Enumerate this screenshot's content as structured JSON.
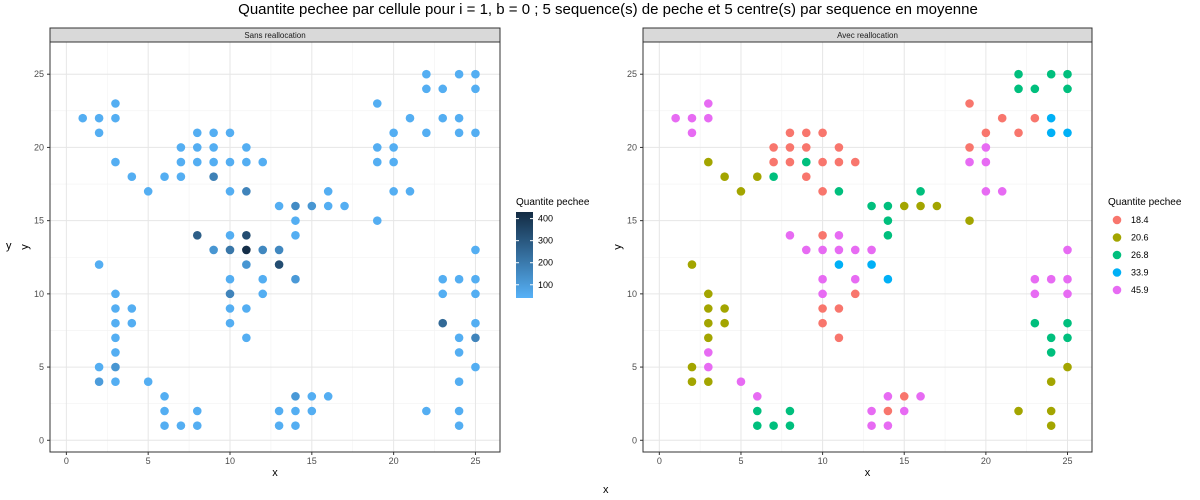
{
  "title": "Quantite pechee par cellule pour i = 1, b = 0 ; 5 sequence(s) de peche et 5 centre(s) par sequence en moyenne",
  "outer_ylabel": "y",
  "outer_xlabel": "x",
  "chart_data": [
    {
      "type": "scatter",
      "facet": "Sans reallocation",
      "xlabel": "x",
      "ylabel": "y",
      "xlim": [
        -1,
        26.5
      ],
      "ylim": [
        -0.8,
        27.2
      ],
      "xticks": [
        0,
        5,
        10,
        15,
        20,
        25
      ],
      "yticks": [
        0,
        5,
        10,
        15,
        20,
        25
      ],
      "grid": true,
      "color_scale": "continuous",
      "legend": {
        "title": "Quantite pechee",
        "breaks": [
          100,
          200,
          300,
          400
        ],
        "range": [
          40,
          430
        ],
        "low_color": "#56B1F7",
        "high_color": "#132B43",
        "position": "right"
      },
      "default_value": 50,
      "highlight_values": [
        {
          "x": 9,
          "y": 18,
          "value": 180
        },
        {
          "x": 11,
          "y": 17,
          "value": 170
        },
        {
          "x": 14,
          "y": 16,
          "value": 150
        },
        {
          "x": 15,
          "y": 16,
          "value": 120
        },
        {
          "x": 8,
          "y": 14,
          "value": 280
        },
        {
          "x": 11,
          "y": 14,
          "value": 330
        },
        {
          "x": 9,
          "y": 13,
          "value": 120
        },
        {
          "x": 10,
          "y": 13,
          "value": 210
        },
        {
          "x": 11,
          "y": 13,
          "value": 420
        },
        {
          "x": 12,
          "y": 13,
          "value": 160
        },
        {
          "x": 13,
          "y": 13,
          "value": 160
        },
        {
          "x": 13,
          "y": 12,
          "value": 330
        },
        {
          "x": 11,
          "y": 12,
          "value": 120
        },
        {
          "x": 14,
          "y": 11,
          "value": 110
        },
        {
          "x": 10,
          "y": 10,
          "value": 170
        },
        {
          "x": 23,
          "y": 8,
          "value": 250
        },
        {
          "x": 25,
          "y": 7,
          "value": 170
        },
        {
          "x": 3,
          "y": 5,
          "value": 120
        },
        {
          "x": 2,
          "y": 4,
          "value": 100
        },
        {
          "x": 14,
          "y": 3,
          "value": 110
        }
      ]
    },
    {
      "type": "scatter",
      "facet": "Avec reallocation",
      "xlabel": "x",
      "ylabel": "y",
      "xlim": [
        -1,
        26.5
      ],
      "ylim": [
        -0.8,
        27.2
      ],
      "xticks": [
        0,
        5,
        10,
        15,
        20,
        25
      ],
      "yticks": [
        0,
        5,
        10,
        15,
        20,
        25
      ],
      "grid": true,
      "color_scale": "discrete",
      "legend": {
        "title": "Quantite pechee",
        "position": "right",
        "entries": [
          {
            "label": "18.4",
            "color": "#F8766D"
          },
          {
            "label": "20.6",
            "color": "#A3A500"
          },
          {
            "label": "26.8",
            "color": "#00BF7D"
          },
          {
            "label": "33.9",
            "color": "#00B0F6"
          },
          {
            "label": "45.9",
            "color": "#E76BF3"
          }
        ]
      }
    }
  ],
  "points": [
    {
      "x": 1,
      "y": 22,
      "g": "45.9"
    },
    {
      "x": 2,
      "y": 22,
      "g": "45.9"
    },
    {
      "x": 3,
      "y": 22,
      "g": "45.9"
    },
    {
      "x": 2,
      "y": 21,
      "g": "45.9"
    },
    {
      "x": 3,
      "y": 23,
      "g": "45.9"
    },
    {
      "x": 3,
      "y": 19,
      "g": "20.6"
    },
    {
      "x": 4,
      "y": 18,
      "g": "20.6"
    },
    {
      "x": 5,
      "y": 17,
      "g": "20.6"
    },
    {
      "x": 6,
      "y": 18,
      "g": "20.6"
    },
    {
      "x": 7,
      "y": 18,
      "g": "26.8"
    },
    {
      "x": 7,
      "y": 19,
      "g": "18.4"
    },
    {
      "x": 7,
      "y": 20,
      "g": "18.4"
    },
    {
      "x": 8,
      "y": 21,
      "g": "18.4"
    },
    {
      "x": 8,
      "y": 20,
      "g": "18.4"
    },
    {
      "x": 8,
      "y": 19,
      "g": "18.4"
    },
    {
      "x": 9,
      "y": 21,
      "g": "18.4"
    },
    {
      "x": 9,
      "y": 20,
      "g": "18.4"
    },
    {
      "x": 9,
      "y": 19,
      "g": "26.8"
    },
    {
      "x": 9,
      "y": 18,
      "g": "18.4"
    },
    {
      "x": 10,
      "y": 21,
      "g": "18.4"
    },
    {
      "x": 10,
      "y": 19,
      "g": "18.4"
    },
    {
      "x": 10,
      "y": 17,
      "g": "18.4"
    },
    {
      "x": 11,
      "y": 20,
      "g": "18.4"
    },
    {
      "x": 11,
      "y": 19,
      "g": "18.4"
    },
    {
      "x": 11,
      "y": 17,
      "g": "26.8"
    },
    {
      "x": 12,
      "y": 19,
      "g": "18.4"
    },
    {
      "x": 13,
      "y": 16,
      "g": "26.8"
    },
    {
      "x": 14,
      "y": 16,
      "g": "26.8"
    },
    {
      "x": 14,
      "y": 15,
      "g": "26.8"
    },
    {
      "x": 14,
      "y": 14,
      "g": "26.8"
    },
    {
      "x": 15,
      "y": 16,
      "g": "20.6"
    },
    {
      "x": 16,
      "y": 16,
      "g": "20.6"
    },
    {
      "x": 16,
      "y": 17,
      "g": "26.8"
    },
    {
      "x": 17,
      "y": 16,
      "g": "20.6"
    },
    {
      "x": 19,
      "y": 15,
      "g": "20.6"
    },
    {
      "x": 19,
      "y": 19,
      "g": "45.9"
    },
    {
      "x": 19,
      "y": 20,
      "g": "18.4"
    },
    {
      "x": 19,
      "y": 23,
      "g": "18.4"
    },
    {
      "x": 20,
      "y": 21,
      "g": "18.4"
    },
    {
      "x": 20,
      "y": 20,
      "g": "45.9"
    },
    {
      "x": 20,
      "y": 19,
      "g": "45.9"
    },
    {
      "x": 20,
      "y": 17,
      "g": "45.9"
    },
    {
      "x": 21,
      "y": 17,
      "g": "45.9"
    },
    {
      "x": 21,
      "y": 22,
      "g": "18.4"
    },
    {
      "x": 22,
      "y": 21,
      "g": "18.4"
    },
    {
      "x": 22,
      "y": 24,
      "g": "26.8"
    },
    {
      "x": 22,
      "y": 25,
      "g": "26.8"
    },
    {
      "x": 23,
      "y": 22,
      "g": "18.4"
    },
    {
      "x": 23,
      "y": 24,
      "g": "26.8"
    },
    {
      "x": 24,
      "y": 25,
      "g": "26.8"
    },
    {
      "x": 24,
      "y": 22,
      "g": "33.9"
    },
    {
      "x": 24,
      "y": 21,
      "g": "33.9"
    },
    {
      "x": 25,
      "y": 25,
      "g": "26.8"
    },
    {
      "x": 25,
      "y": 24,
      "g": "26.8"
    },
    {
      "x": 25,
      "y": 21,
      "g": "33.9"
    },
    {
      "x": 8,
      "y": 14,
      "g": "45.9"
    },
    {
      "x": 9,
      "y": 13,
      "g": "45.9"
    },
    {
      "x": 10,
      "y": 14,
      "g": "18.4"
    },
    {
      "x": 10,
      "y": 13,
      "g": "45.9"
    },
    {
      "x": 10,
      "y": 11,
      "g": "45.9"
    },
    {
      "x": 10,
      "y": 10,
      "g": "45.9"
    },
    {
      "x": 10,
      "y": 9,
      "g": "18.4"
    },
    {
      "x": 10,
      "y": 8,
      "g": "18.4"
    },
    {
      "x": 11,
      "y": 14,
      "g": "45.9"
    },
    {
      "x": 11,
      "y": 13,
      "g": "45.9"
    },
    {
      "x": 11,
      "y": 12,
      "g": "33.9"
    },
    {
      "x": 11,
      "y": 9,
      "g": "18.4"
    },
    {
      "x": 11,
      "y": 7,
      "g": "18.4"
    },
    {
      "x": 12,
      "y": 13,
      "g": "45.9"
    },
    {
      "x": 12,
      "y": 11,
      "g": "45.9"
    },
    {
      "x": 12,
      "y": 10,
      "g": "18.4"
    },
    {
      "x": 13,
      "y": 13,
      "g": "45.9"
    },
    {
      "x": 13,
      "y": 12,
      "g": "33.9"
    },
    {
      "x": 14,
      "y": 11,
      "g": "33.9"
    },
    {
      "x": 2,
      "y": 12,
      "g": "20.6"
    },
    {
      "x": 3,
      "y": 10,
      "g": "20.6"
    },
    {
      "x": 3,
      "y": 9,
      "g": "20.6"
    },
    {
      "x": 3,
      "y": 8,
      "g": "20.6"
    },
    {
      "x": 3,
      "y": 7,
      "g": "20.6"
    },
    {
      "x": 3,
      "y": 6,
      "g": "45.9"
    },
    {
      "x": 3,
      "y": 5,
      "g": "45.9"
    },
    {
      "x": 3,
      "y": 4,
      "g": "20.6"
    },
    {
      "x": 2,
      "y": 5,
      "g": "20.6"
    },
    {
      "x": 2,
      "y": 4,
      "g": "20.6"
    },
    {
      "x": 4,
      "y": 9,
      "g": "20.6"
    },
    {
      "x": 4,
      "y": 8,
      "g": "20.6"
    },
    {
      "x": 5,
      "y": 4,
      "g": "45.9"
    },
    {
      "x": 6,
      "y": 3,
      "g": "45.9"
    },
    {
      "x": 6,
      "y": 2,
      "g": "26.8"
    },
    {
      "x": 6,
      "y": 1,
      "g": "26.8"
    },
    {
      "x": 7,
      "y": 1,
      "g": "26.8"
    },
    {
      "x": 8,
      "y": 2,
      "g": "26.8"
    },
    {
      "x": 8,
      "y": 1,
      "g": "26.8"
    },
    {
      "x": 13,
      "y": 2,
      "g": "45.9"
    },
    {
      "x": 13,
      "y": 1,
      "g": "45.9"
    },
    {
      "x": 14,
      "y": 3,
      "g": "45.9"
    },
    {
      "x": 14,
      "y": 2,
      "g": "18.4"
    },
    {
      "x": 14,
      "y": 1,
      "g": "45.9"
    },
    {
      "x": 15,
      "y": 3,
      "g": "18.4"
    },
    {
      "x": 15,
      "y": 2,
      "g": "45.9"
    },
    {
      "x": 16,
      "y": 3,
      "g": "45.9"
    },
    {
      "x": 22,
      "y": 2,
      "g": "20.6"
    },
    {
      "x": 23,
      "y": 11,
      "g": "45.9"
    },
    {
      "x": 23,
      "y": 10,
      "g": "45.9"
    },
    {
      "x": 23,
      "y": 8,
      "g": "26.8"
    },
    {
      "x": 24,
      "y": 11,
      "g": "45.9"
    },
    {
      "x": 24,
      "y": 7,
      "g": "26.8"
    },
    {
      "x": 24,
      "y": 6,
      "g": "26.8"
    },
    {
      "x": 24,
      "y": 4,
      "g": "20.6"
    },
    {
      "x": 24,
      "y": 2,
      "g": "20.6"
    },
    {
      "x": 24,
      "y": 1,
      "g": "20.6"
    },
    {
      "x": 25,
      "y": 13,
      "g": "45.9"
    },
    {
      "x": 25,
      "y": 11,
      "g": "45.9"
    },
    {
      "x": 25,
      "y": 10,
      "g": "45.9"
    },
    {
      "x": 25,
      "y": 8,
      "g": "26.8"
    },
    {
      "x": 25,
      "y": 7,
      "g": "26.8"
    },
    {
      "x": 25,
      "y": 5,
      "g": "20.6"
    }
  ]
}
